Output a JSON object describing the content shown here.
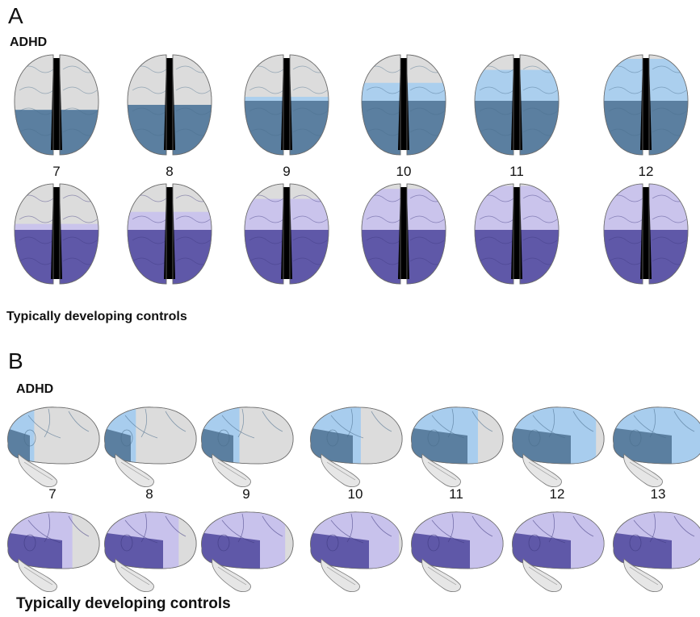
{
  "panels": [
    {
      "letter": "A",
      "view": "axial",
      "top_label": "ADHD",
      "bottom_label": "Typically developing controls",
      "ages": [
        "7",
        "8",
        "9",
        "10",
        "11",
        "12"
      ],
      "adhd_cortex_fraction": [
        0.45,
        0.5,
        0.58,
        0.72,
        0.85,
        0.96
      ],
      "tdc_cortex_fraction": [
        0.6,
        0.72,
        0.85,
        0.95,
        0.98,
        1.0
      ]
    },
    {
      "letter": "B",
      "view": "lateral",
      "top_label": "ADHD",
      "bottom_label": "Typically developing controls",
      "ages": [
        "7",
        "8",
        "9",
        "10",
        "11",
        "12",
        "13"
      ],
      "adhd_cortex_fraction": [
        0.3,
        0.35,
        0.42,
        0.55,
        0.72,
        0.9,
        1.0
      ],
      "tdc_cortex_fraction": [
        0.7,
        0.8,
        0.9,
        0.95,
        0.98,
        1.0,
        1.0
      ]
    }
  ],
  "colors": {
    "adhd_early": "#5b7fa0",
    "adhd_late": "#a8cdee",
    "adhd_edge": "#4a6d8c",
    "tdc_early": "#5f58a8",
    "tdc_late": "#c8c2ec",
    "tdc_edge": "#3f3a80",
    "unmatured": "#dcdcdc",
    "midline": "#000000"
  }
}
